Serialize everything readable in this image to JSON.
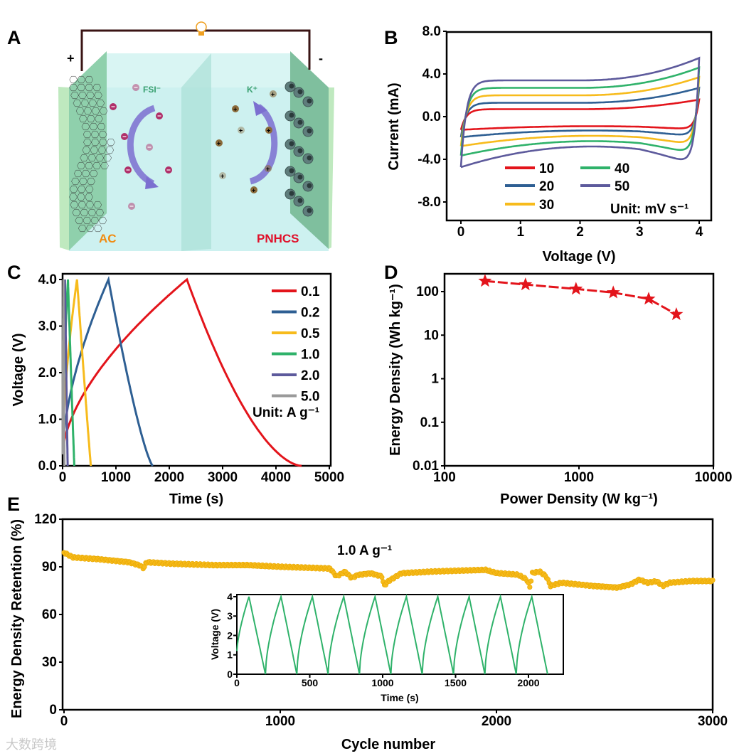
{
  "panel_labels": [
    "A",
    "B",
    "C",
    "D",
    "E"
  ],
  "schematic": {
    "positive_sign": "+",
    "negative_sign": "-",
    "anion_label": "FSI⁻",
    "cation_label": "K⁺",
    "cathode_label": "AC",
    "anode_label": "PNHCS",
    "colors": {
      "electrolyte": "#cdf1f0",
      "electrode": "#8fd0ac",
      "wire": "#3a1414",
      "arrow": "#7b6fd0",
      "anion": "#b0306a",
      "cation": "#8a6a3a",
      "ac_label": "#f08a10",
      "pnhcs_label": "#e0102a",
      "ion_label": "#3aa070"
    }
  },
  "watermark": "大数跨境",
  "chart_data": [
    {
      "id": "B",
      "type": "line",
      "xlabel": "Voltage (V)",
      "ylabel": "Current (mA)",
      "xlim": [
        -0.24,
        4.2
      ],
      "ylim": [
        -10.9,
        8.0
      ],
      "xticks": [
        "0",
        "1",
        "2",
        "3",
        "4"
      ],
      "yticks": [
        "8.0",
        "4.0",
        "0.0",
        "-4.0",
        "-8.0"
      ],
      "legend_unit": "Unit: mV s⁻¹",
      "series": [
        {
          "name": "10",
          "color": "#e3141b",
          "upper_at_2V": 0.7,
          "upper_at_4V": 1.6,
          "lower_at_2V": -0.9,
          "lower_curvature": 0.07
        },
        {
          "name": "20",
          "color": "#2e5f93",
          "upper_at_2V": 1.3,
          "upper_at_4V": 2.7,
          "lower_at_2V": -1.3,
          "lower_curvature": 0.13
        },
        {
          "name": "30",
          "color": "#f7bb1c",
          "upper_at_2V": 2.0,
          "upper_at_4V": 3.7,
          "lower_at_2V": -1.8,
          "lower_curvature": 0.2
        },
        {
          "name": "40",
          "color": "#2fb26a",
          "upper_at_2V": 2.7,
          "upper_at_4V": 4.6,
          "lower_at_2V": -2.3,
          "lower_curvature": 0.28
        },
        {
          "name": "50",
          "color": "#5d5a9c",
          "upper_at_2V": 3.4,
          "upper_at_4V": 5.5,
          "lower_at_2V": -2.8,
          "lower_curvature": 0.4
        }
      ]
    },
    {
      "id": "C",
      "type": "line",
      "xlabel": "Time (s)",
      "ylabel": "Voltage (V)",
      "xlim": [
        0,
        5000
      ],
      "ylim": [
        0,
        4.12
      ],
      "xticks": [
        "0",
        "1000",
        "2000",
        "3000",
        "4000",
        "5000"
      ],
      "yticks": [
        "0.0",
        "1.0",
        "2.0",
        "3.0",
        "4.0"
      ],
      "legend_unit": "Unit: A g⁻¹",
      "series": [
        {
          "name": "0.1",
          "color": "#e3141b",
          "charge_end_s": 2330,
          "discharge_end_s": 4480
        },
        {
          "name": "0.2",
          "color": "#2e5f93",
          "charge_end_s": 860,
          "discharge_end_s": 1690
        },
        {
          "name": "0.5",
          "color": "#f7bb1c",
          "charge_end_s": 270,
          "discharge_end_s": 530
        },
        {
          "name": "1.0",
          "color": "#2fb26a",
          "charge_end_s": 100,
          "discharge_end_s": 220
        },
        {
          "name": "2.0",
          "color": "#5d5a9c",
          "charge_end_s": 45,
          "discharge_end_s": 95
        },
        {
          "name": "5.0",
          "color": "#9a9a9a",
          "charge_end_s": 15,
          "discharge_end_s": 35
        }
      ]
    },
    {
      "id": "D",
      "type": "line",
      "scale": "log-log",
      "xlabel": "Power Density (W kg⁻¹)",
      "ylabel": "Energy Density (Wh kg⁻¹)",
      "xlim": [
        100,
        10000
      ],
      "ylim": [
        0.01,
        257
      ],
      "xticks": [
        "100",
        "1000",
        "10000"
      ],
      "yticks": [
        "0.01",
        "0.1",
        "1",
        "10",
        "100"
      ],
      "color": "#e3141b",
      "x": [
        200,
        400,
        950,
        1800,
        3300,
        5300
      ],
      "y": [
        175,
        145,
        115,
        95,
        68,
        30
      ]
    },
    {
      "id": "E",
      "type": "scatter",
      "xlabel": "Cycle number",
      "ylabel": "Energy Density Retention (%)",
      "xlim": [
        0,
        3000
      ],
      "ylim": [
        0,
        120
      ],
      "xticks": [
        "0",
        "1000",
        "2000",
        "3000"
      ],
      "yticks": [
        "0",
        "30",
        "60",
        "90",
        "120"
      ],
      "annotation": "1.0 A g⁻¹",
      "color": "#f7bb1c",
      "points": [
        [
          0,
          99
        ],
        [
          40,
          96
        ],
        [
          150,
          95
        ],
        [
          300,
          93
        ],
        [
          350,
          91
        ],
        [
          370,
          89
        ],
        [
          380,
          93
        ],
        [
          500,
          92
        ],
        [
          700,
          91
        ],
        [
          850,
          91
        ],
        [
          1000,
          90
        ],
        [
          1230,
          89
        ],
        [
          1260,
          84
        ],
        [
          1300,
          87
        ],
        [
          1330,
          83
        ],
        [
          1360,
          85
        ],
        [
          1420,
          86
        ],
        [
          1470,
          84
        ],
        [
          1480,
          78
        ],
        [
          1500,
          81
        ],
        [
          1560,
          86
        ],
        [
          1700,
          87
        ],
        [
          1950,
          88
        ],
        [
          2000,
          86
        ],
        [
          2100,
          85
        ],
        [
          2140,
          82
        ],
        [
          2155,
          77
        ],
        [
          2165,
          86
        ],
        [
          2200,
          87
        ],
        [
          2230,
          84
        ],
        [
          2250,
          78
        ],
        [
          2300,
          80
        ],
        [
          2450,
          78
        ],
        [
          2560,
          77
        ],
        [
          2620,
          79
        ],
        [
          2660,
          82
        ],
        [
          2700,
          80
        ],
        [
          2740,
          81
        ],
        [
          2770,
          78
        ],
        [
          2800,
          80
        ],
        [
          2900,
          81
        ],
        [
          3000,
          81
        ]
      ],
      "inset": {
        "type": "line",
        "xlabel": "Time (s)",
        "ylabel": "Voltage (V)",
        "xlim": [
          0,
          2210
        ],
        "ylim": [
          0,
          4
        ],
        "xticks": [
          "0",
          "500",
          "1000",
          "1500",
          "2000"
        ],
        "yticks": [
          "0",
          "1",
          "2",
          "3",
          "4"
        ],
        "color": "#2fb26a",
        "cycles": 10,
        "period_s": 215,
        "first_peak_s": 83,
        "charge_s": 107,
        "start_voltage": 1.2
      }
    }
  ]
}
